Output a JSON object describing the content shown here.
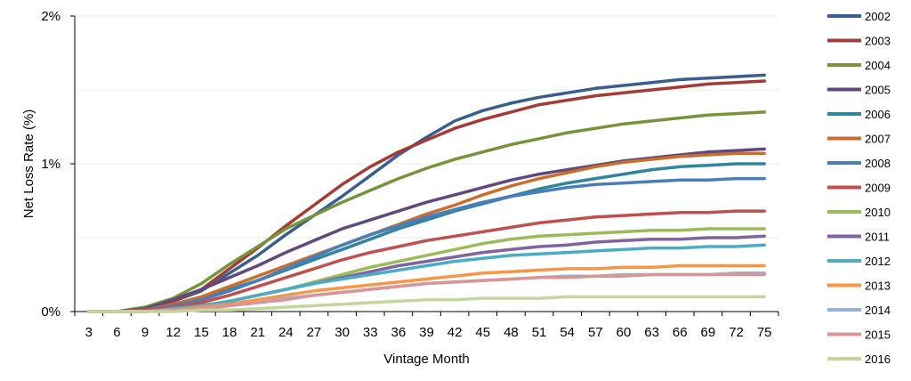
{
  "chart_data": {
    "type": "line",
    "title": "",
    "xlabel": "Vintage Month",
    "ylabel": "Net Loss Rate (%)",
    "x": [
      3,
      6,
      9,
      12,
      15,
      18,
      21,
      24,
      27,
      30,
      33,
      36,
      39,
      42,
      45,
      48,
      51,
      54,
      57,
      60,
      63,
      66,
      69,
      72,
      75
    ],
    "ylim": [
      0,
      2
    ],
    "yticks": [
      0,
      1,
      2
    ],
    "ytick_labels": [
      "0%",
      "1%",
      "2%"
    ],
    "grid": true,
    "legend_position": "right",
    "series": [
      {
        "name": "2002",
        "color": "#3a5f8f",
        "values": [
          0.0,
          0.0,
          0.02,
          0.07,
          0.14,
          0.26,
          0.38,
          0.52,
          0.65,
          0.78,
          0.92,
          1.06,
          1.18,
          1.29,
          1.36,
          1.41,
          1.45,
          1.48,
          1.51,
          1.53,
          1.55,
          1.57,
          1.58,
          1.59,
          1.6
        ]
      },
      {
        "name": "2003",
        "color": "#a33b36",
        "values": [
          0.0,
          0.0,
          0.02,
          0.07,
          0.15,
          0.29,
          0.43,
          0.58,
          0.72,
          0.86,
          0.98,
          1.08,
          1.16,
          1.24,
          1.3,
          1.35,
          1.4,
          1.43,
          1.46,
          1.48,
          1.5,
          1.52,
          1.54,
          1.55,
          1.56
        ]
      },
      {
        "name": "2004",
        "color": "#77933c",
        "values": [
          0.0,
          0.0,
          0.03,
          0.09,
          0.19,
          0.32,
          0.44,
          0.56,
          0.65,
          0.74,
          0.82,
          0.9,
          0.97,
          1.03,
          1.08,
          1.13,
          1.17,
          1.21,
          1.24,
          1.27,
          1.29,
          1.31,
          1.33,
          1.34,
          1.35
        ]
      },
      {
        "name": "2005",
        "color": "#604a7b",
        "values": [
          0.0,
          0.0,
          0.02,
          0.08,
          0.15,
          0.23,
          0.31,
          0.4,
          0.48,
          0.56,
          0.62,
          0.68,
          0.74,
          0.79,
          0.84,
          0.89,
          0.93,
          0.96,
          0.99,
          1.02,
          1.04,
          1.06,
          1.08,
          1.09,
          1.1
        ]
      },
      {
        "name": "2006",
        "color": "#31859c",
        "values": [
          0.0,
          0.0,
          0.01,
          0.04,
          0.09,
          0.15,
          0.21,
          0.28,
          0.35,
          0.42,
          0.49,
          0.56,
          0.62,
          0.68,
          0.73,
          0.78,
          0.83,
          0.87,
          0.9,
          0.93,
          0.96,
          0.98,
          0.99,
          1.0,
          1.0
        ]
      },
      {
        "name": "2007",
        "color": "#c96e2c",
        "values": [
          0.0,
          0.0,
          0.01,
          0.05,
          0.1,
          0.17,
          0.24,
          0.31,
          0.38,
          0.45,
          0.52,
          0.59,
          0.66,
          0.72,
          0.79,
          0.85,
          0.9,
          0.94,
          0.98,
          1.01,
          1.03,
          1.05,
          1.06,
          1.07,
          1.07
        ]
      },
      {
        "name": "2008",
        "color": "#4a7ebb",
        "values": [
          0.0,
          0.0,
          0.01,
          0.04,
          0.08,
          0.14,
          0.21,
          0.29,
          0.37,
          0.45,
          0.52,
          0.58,
          0.64,
          0.69,
          0.74,
          0.78,
          0.81,
          0.84,
          0.86,
          0.87,
          0.88,
          0.89,
          0.89,
          0.9,
          0.9
        ]
      },
      {
        "name": "2009",
        "color": "#c0504d",
        "values": [
          0.0,
          0.0,
          0.01,
          0.03,
          0.06,
          0.11,
          0.17,
          0.23,
          0.29,
          0.35,
          0.4,
          0.44,
          0.48,
          0.51,
          0.54,
          0.57,
          0.6,
          0.62,
          0.64,
          0.65,
          0.66,
          0.67,
          0.67,
          0.68,
          0.68
        ]
      },
      {
        "name": "2010",
        "color": "#9bbb59",
        "values": [
          0.0,
          0.0,
          0.0,
          0.02,
          0.04,
          0.07,
          0.11,
          0.15,
          0.2,
          0.25,
          0.3,
          0.34,
          0.38,
          0.42,
          0.46,
          0.49,
          0.51,
          0.52,
          0.53,
          0.54,
          0.55,
          0.55,
          0.56,
          0.56,
          0.56
        ]
      },
      {
        "name": "2011",
        "color": "#8064a2",
        "values": [
          0.0,
          0.0,
          0.0,
          0.02,
          0.04,
          0.07,
          0.11,
          0.15,
          0.19,
          0.23,
          0.27,
          0.31,
          0.34,
          0.37,
          0.4,
          0.42,
          0.44,
          0.45,
          0.47,
          0.48,
          0.49,
          0.49,
          0.5,
          0.5,
          0.51
        ]
      },
      {
        "name": "2012",
        "color": "#4bacc6",
        "values": [
          0.0,
          0.0,
          0.0,
          0.02,
          0.04,
          0.07,
          0.11,
          0.15,
          0.19,
          0.22,
          0.25,
          0.28,
          0.31,
          0.34,
          0.36,
          0.38,
          0.39,
          0.4,
          0.41,
          0.42,
          0.43,
          0.43,
          0.44,
          0.44,
          0.45
        ]
      },
      {
        "name": "2013",
        "color": "#f79646",
        "values": [
          0.0,
          0.0,
          0.0,
          0.01,
          0.03,
          0.05,
          0.08,
          0.11,
          0.14,
          0.16,
          0.18,
          0.2,
          0.22,
          0.24,
          0.26,
          0.27,
          0.28,
          0.29,
          0.29,
          0.3,
          0.3,
          0.31,
          0.31,
          0.31,
          0.31
        ]
      },
      {
        "name": "2014",
        "color": "#95b3d7",
        "values": [
          0.0,
          0.0,
          0.0,
          0.01,
          0.02,
          0.04,
          0.06,
          0.09,
          0.11,
          0.13,
          0.15,
          0.17,
          0.19,
          0.2,
          0.21,
          0.22,
          0.23,
          0.24,
          0.24,
          0.25,
          0.25,
          0.25,
          0.25,
          0.26,
          0.26
        ]
      },
      {
        "name": "2015",
        "color": "#d99694",
        "values": [
          0.0,
          0.0,
          0.0,
          0.01,
          0.02,
          0.04,
          0.06,
          0.08,
          0.11,
          0.13,
          0.15,
          0.17,
          0.19,
          0.2,
          0.21,
          0.22,
          0.23,
          0.23,
          0.24,
          0.24,
          0.25,
          0.25,
          0.25,
          0.25,
          0.25
        ]
      },
      {
        "name": "2016",
        "color": "#c3d69b",
        "values": [
          0.0,
          0.0,
          0.0,
          0.0,
          0.01,
          0.01,
          0.02,
          0.03,
          0.04,
          0.05,
          0.06,
          0.07,
          0.08,
          0.08,
          0.09,
          0.09,
          0.09,
          0.1,
          0.1,
          0.1,
          0.1,
          0.1,
          0.1,
          0.1,
          0.1
        ]
      }
    ]
  }
}
